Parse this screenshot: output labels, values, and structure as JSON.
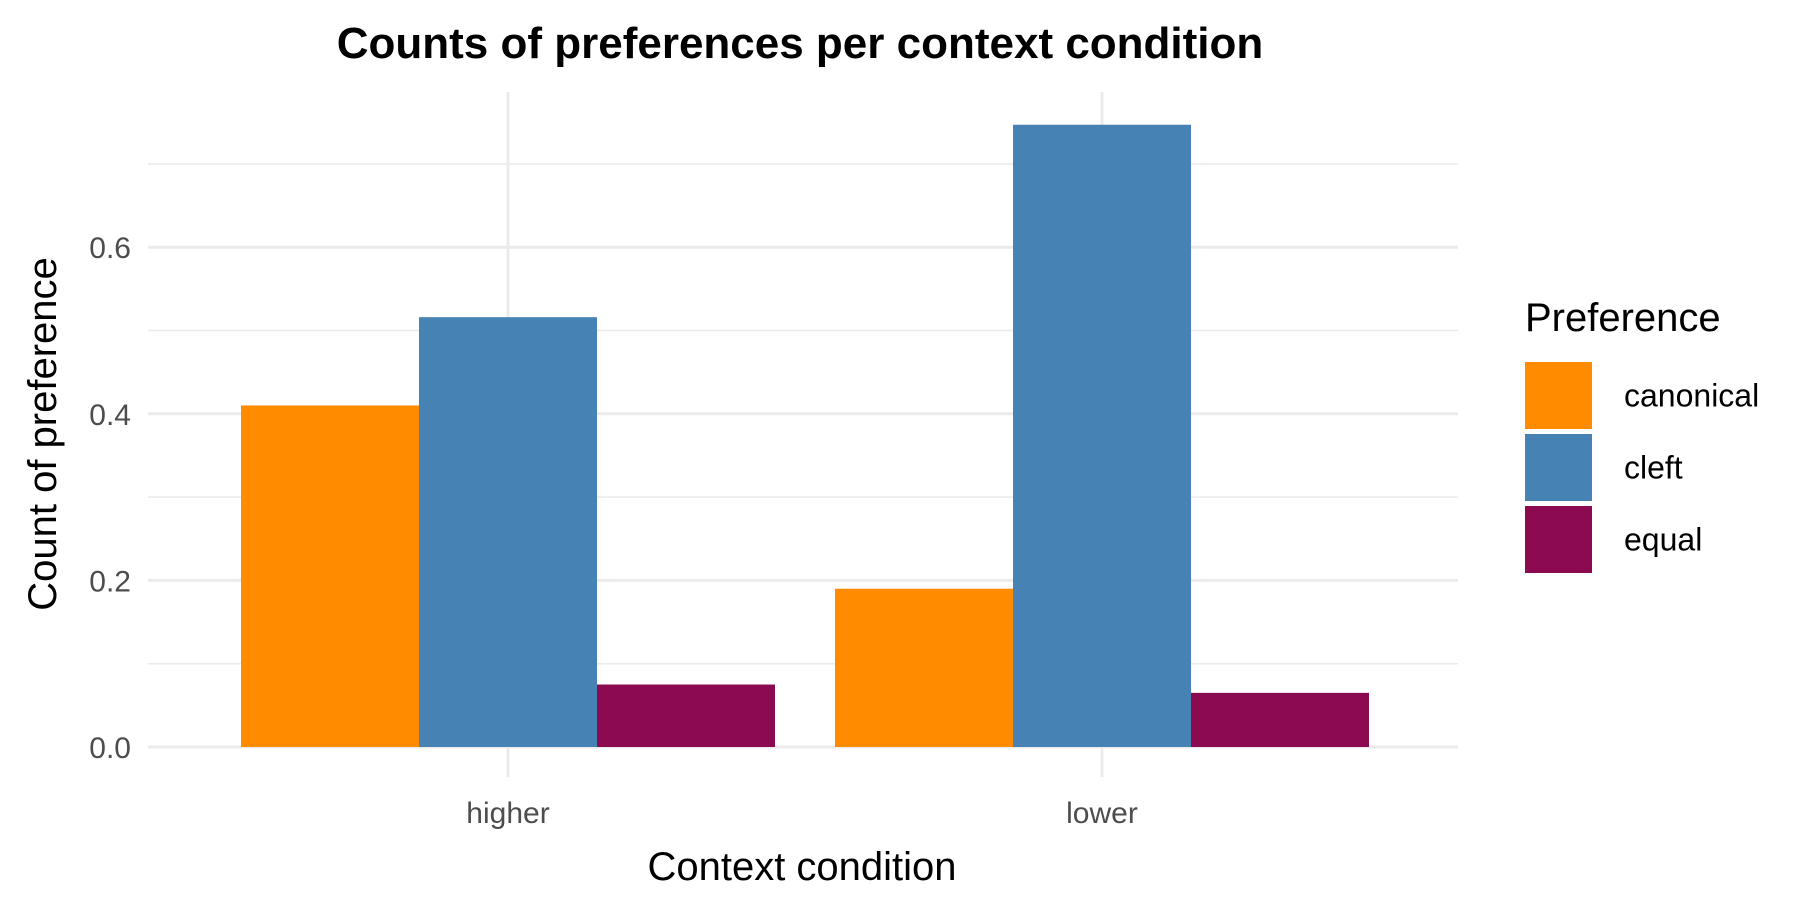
{
  "chart_data": {
    "type": "bar",
    "title": "Counts of preferences per context condition",
    "xlabel": "Context condition",
    "ylabel": "Count of preference",
    "categories": [
      "higher",
      "lower"
    ],
    "series": [
      {
        "name": "canonical",
        "color": "#FF8C00",
        "values": [
          0.41,
          0.19
        ]
      },
      {
        "name": "cleft",
        "color": "#4682B4",
        "values": [
          0.516,
          0.747
        ]
      },
      {
        "name": "equal",
        "color": "#8B0A50",
        "values": [
          0.075,
          0.065
        ]
      }
    ],
    "ylim": [
      0,
      0.8
    ],
    "yticks": [
      0.0,
      0.2,
      0.4,
      0.6
    ],
    "ytick_labels": [
      "0.0",
      "0.2",
      "0.4",
      "0.6"
    ],
    "grid": true,
    "legend": {
      "title": "Preference",
      "position": "right"
    }
  }
}
